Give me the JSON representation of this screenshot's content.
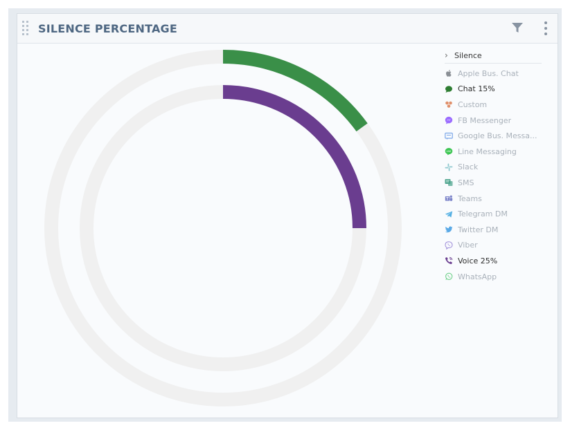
{
  "widget": {
    "title": "SILENCE PERCENTAGE",
    "filter_icon": "filter-icon",
    "menu_icon": "more-vertical-icon",
    "drag_icon": "drag-handle-icon"
  },
  "legend": {
    "group_label": "Silence",
    "items": [
      {
        "label": "Apple Bus. Chat",
        "icon": "apple-icon",
        "color": "#8a8f95",
        "active": false
      },
      {
        "label": "Chat 15%",
        "icon": "chat-icon",
        "color": "#2e7d32",
        "active": true
      },
      {
        "label": "Custom",
        "icon": "custom-icon",
        "color": "#e0906b",
        "active": false
      },
      {
        "label": "FB Messenger",
        "icon": "messenger-icon",
        "color": "#9b6cff",
        "active": false
      },
      {
        "label": "Google Bus. Messa...",
        "icon": "google-business-icon",
        "color": "#7aa6e8",
        "active": false
      },
      {
        "label": "Line Messaging",
        "icon": "line-icon",
        "color": "#3cc552",
        "active": false
      },
      {
        "label": "Slack",
        "icon": "slack-icon",
        "color": "#8fc9cf",
        "active": false
      },
      {
        "label": "SMS",
        "icon": "sms-icon",
        "color": "#4fa58f",
        "active": false
      },
      {
        "label": "Teams",
        "icon": "teams-icon",
        "color": "#7b83c9",
        "active": false
      },
      {
        "label": "Telegram DM",
        "icon": "telegram-icon",
        "color": "#55b0e3",
        "active": false
      },
      {
        "label": "Twitter DM",
        "icon": "twitter-icon",
        "color": "#5aa9e6",
        "active": false
      },
      {
        "label": "Viber",
        "icon": "viber-icon",
        "color": "#9b8ad8",
        "active": false
      },
      {
        "label": "Voice 25%",
        "icon": "phone-icon",
        "color": "#6a3d8f",
        "active": true
      },
      {
        "label": "WhatsApp",
        "icon": "whatsapp-icon",
        "color": "#6fd08a",
        "active": false
      }
    ]
  },
  "chart_data": {
    "type": "donut",
    "title": "SILENCE PERCENTAGE",
    "series": [
      {
        "name": "Chat",
        "value": 15,
        "color": "#3a8f48",
        "ring": "outer"
      },
      {
        "name": "Voice",
        "value": 25,
        "color": "#6a3d8f",
        "ring": "inner"
      }
    ],
    "track_color": "#f0f0f0",
    "max": 100
  }
}
